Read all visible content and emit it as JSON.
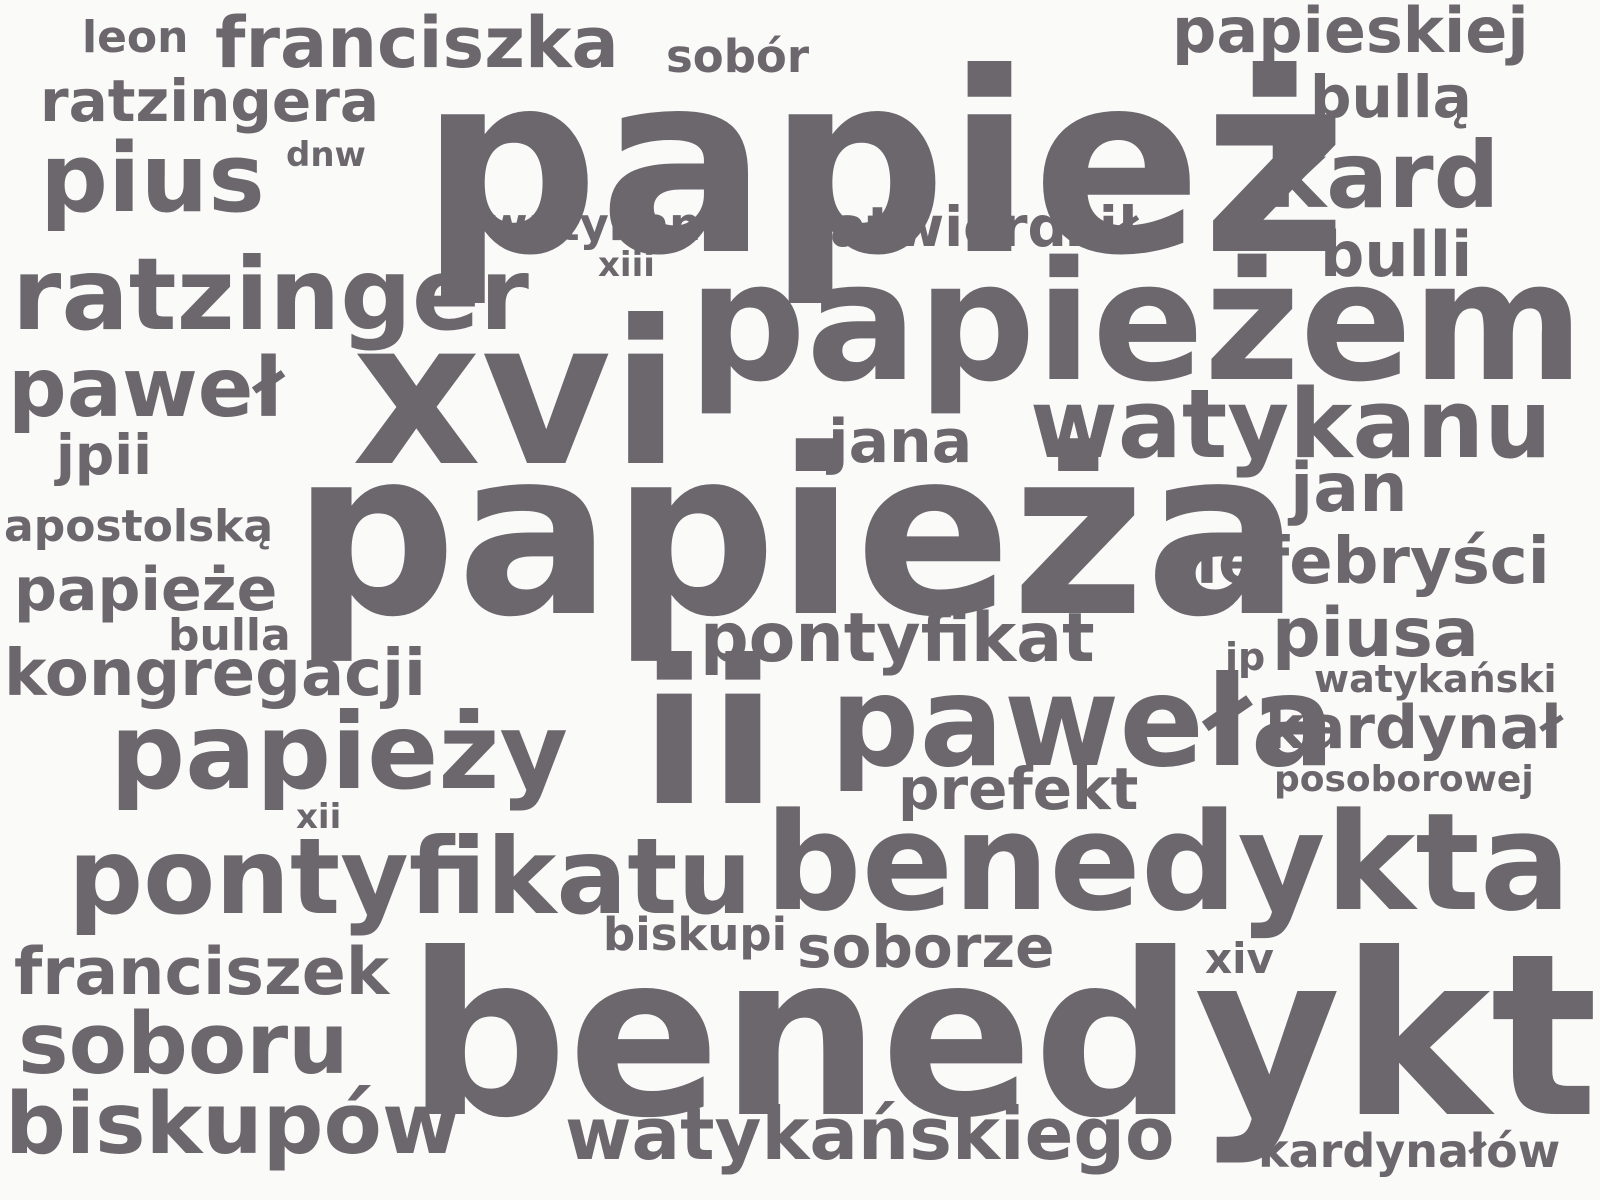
{
  "colors": {
    "background": "#fafaf8",
    "word": "#6b676d"
  },
  "words": [
    {
      "text": "papież",
      "weight": 250
    },
    {
      "text": "papieża",
      "weight": 230
    },
    {
      "text": "benedykt",
      "weight": 225
    },
    {
      "text": "xvi",
      "weight": 200
    },
    {
      "text": "ii",
      "weight": 200
    },
    {
      "text": "papieżem",
      "weight": 165
    },
    {
      "text": "benedykta",
      "weight": 135
    },
    {
      "text": "paweła",
      "weight": 125
    },
    {
      "text": "pontyfikatu",
      "weight": 105
    },
    {
      "text": "papieży",
      "weight": 105
    },
    {
      "text": "ratzinger",
      "weight": 100
    },
    {
      "text": "watykanu",
      "weight": 95
    },
    {
      "text": "pius",
      "weight": 95
    },
    {
      "text": "kard",
      "weight": 92
    },
    {
      "text": "biskupów",
      "weight": 85
    },
    {
      "text": "soboru",
      "weight": 85
    },
    {
      "text": "paweł",
      "weight": 82
    },
    {
      "text": "watykańskiego",
      "weight": 72
    },
    {
      "text": "franciszka",
      "weight": 70
    },
    {
      "text": "pontyfikat",
      "weight": 68
    },
    {
      "text": "piusa",
      "weight": 68
    },
    {
      "text": "jan",
      "weight": 68
    },
    {
      "text": "franciszek",
      "weight": 65
    },
    {
      "text": "kongregacji",
      "weight": 64
    },
    {
      "text": "lefebryści",
      "weight": 64
    },
    {
      "text": "papieskiej",
      "weight": 62
    },
    {
      "text": "bulli",
      "weight": 62
    },
    {
      "text": "kardynał",
      "weight": 60
    },
    {
      "text": "jana",
      "weight": 60
    },
    {
      "text": "papieże",
      "weight": 60
    },
    {
      "text": "prefekt",
      "weight": 58
    },
    {
      "text": "soborze",
      "weight": 58
    },
    {
      "text": "ratzingera",
      "weight": 58
    },
    {
      "text": "bullą",
      "weight": 58
    },
    {
      "text": "zatwierdził",
      "weight": 55
    },
    {
      "text": "jpii",
      "weight": 55
    },
    {
      "text": "kardynałów",
      "weight": 46
    },
    {
      "text": "biskupi",
      "weight": 45
    },
    {
      "text": "watykan",
      "weight": 45
    },
    {
      "text": "sobór",
      "weight": 45
    },
    {
      "text": "apostolską",
      "weight": 44
    },
    {
      "text": "leon",
      "weight": 44
    },
    {
      "text": "bulla",
      "weight": 44
    },
    {
      "text": "xiv",
      "weight": 42
    },
    {
      "text": "watykański",
      "weight": 38
    },
    {
      "text": "jp",
      "weight": 38
    },
    {
      "text": "posoborowej",
      "weight": 36
    },
    {
      "text": "xiii",
      "weight": 34
    },
    {
      "text": "dnw",
      "weight": 34
    },
    {
      "text": "xii",
      "weight": 34
    }
  ]
}
